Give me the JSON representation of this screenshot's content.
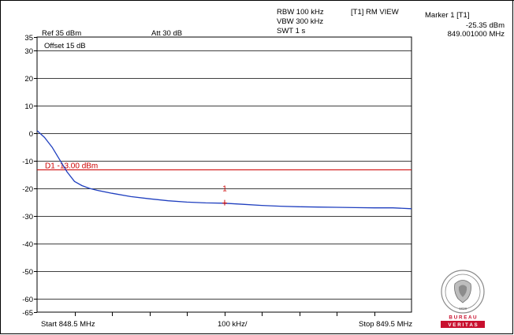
{
  "header": {
    "ref": "Ref 35 dBm",
    "att": "Att  30 dB",
    "offset": "Offset 15 dB",
    "rbw": "RBW 100 kHz",
    "vbw": "VBW 300 kHz",
    "swt": "SWT 1 s",
    "trace_mode": "[T1] RM VIEW",
    "marker_title": "Marker 1 [T1]",
    "marker_level": "-25.35 dBm",
    "marker_freq": "849.001000 MHz"
  },
  "footer": {
    "start": "Start 848.5 MHz",
    "span_div": "100 kHz/",
    "stop": "Stop 849.5 MHz"
  },
  "logo": {
    "bureau": "B U R E A U",
    "veritas": "V E R I T A S",
    "year": "1828",
    "ring_text": "BUREAU VERITAS"
  },
  "chart_data": {
    "type": "line",
    "y_axis_ticks": [
      "35",
      "30",
      "20",
      "10",
      "0",
      "-10",
      "-20",
      "-30",
      "-40",
      "-50",
      "-60",
      "-65"
    ],
    "ylim": [
      -65,
      35
    ],
    "xlim": [
      848.5,
      849.5
    ],
    "x_unit": "MHz",
    "y_unit": "dBm",
    "limit_line": {
      "label": "D1 -13.00 dBm",
      "value": -13.0,
      "color": "#cc0000"
    },
    "marker": {
      "label": "1",
      "x": 849.001,
      "y": -25.35,
      "color": "#cc0000"
    },
    "series": [
      {
        "color": "#1f3fbf",
        "x": [
          848.5,
          848.52,
          848.54,
          848.56,
          848.58,
          848.6,
          848.62,
          848.64,
          848.66,
          848.7,
          848.75,
          848.8,
          848.85,
          848.9,
          848.95,
          849.0,
          849.05,
          849.1,
          849.15,
          849.2,
          849.25,
          849.3,
          849.35,
          849.4,
          849.45,
          849.5
        ],
        "y": [
          1.0,
          -1.5,
          -5.0,
          -9.5,
          -14.0,
          -17.5,
          -19.0,
          -20.0,
          -20.7,
          -21.8,
          -23.0,
          -23.8,
          -24.5,
          -25.0,
          -25.3,
          -25.4,
          -25.8,
          -26.2,
          -26.5,
          -26.7,
          -26.8,
          -26.9,
          -27.0,
          -27.1,
          -27.1,
          -27.4
        ]
      }
    ]
  }
}
